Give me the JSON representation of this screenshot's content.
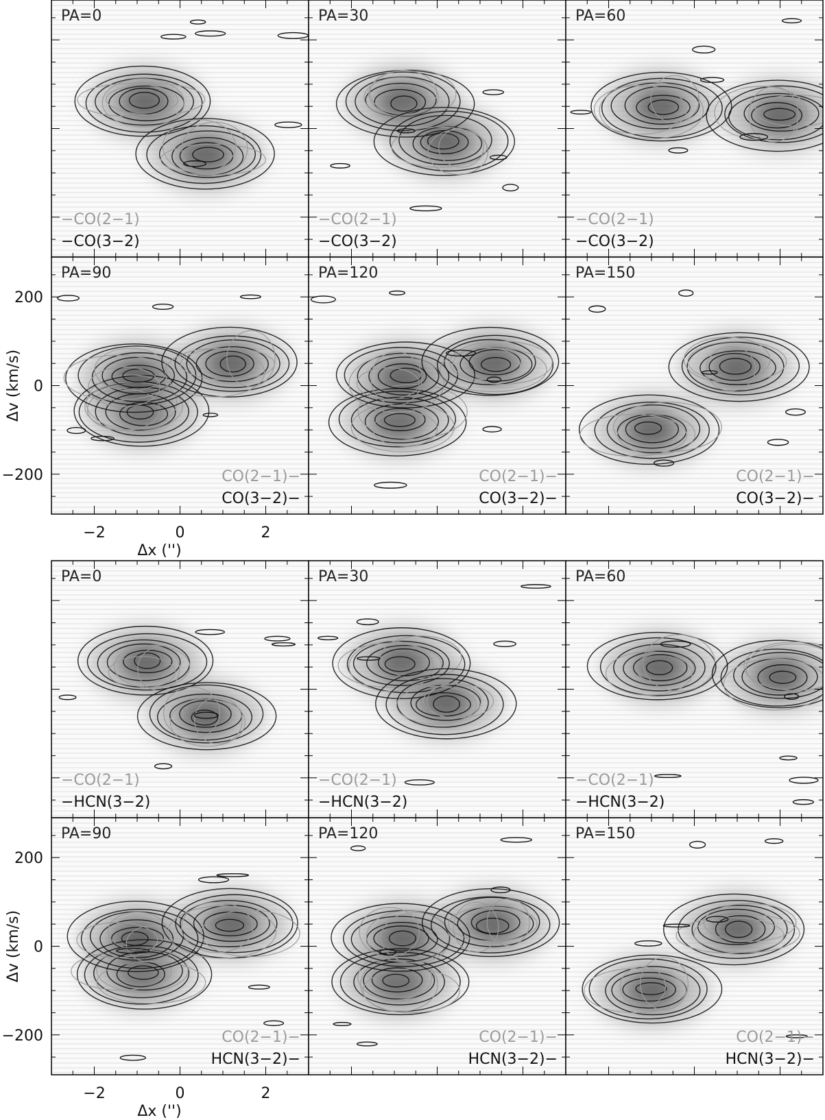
{
  "figure": {
    "blocks": [
      {
        "id": "co32",
        "contour_line": "CO(3-2)",
        "panels": [
          {
            "pa": "PA=0",
            "legend_grey": "−CO(2−1)",
            "legend_black": "−CO(3−2)",
            "legend_side": "left"
          },
          {
            "pa": "PA=30",
            "legend_grey": "−CO(2−1)",
            "legend_black": "−CO(3−2)",
            "legend_side": "left"
          },
          {
            "pa": "PA=60",
            "legend_grey": "−CO(2−1)",
            "legend_black": "−CO(3−2)",
            "legend_side": "left"
          },
          {
            "pa": "PA=90",
            "legend_grey": "CO(2−1)−",
            "legend_black": "CO(3−2)−",
            "legend_side": "right"
          },
          {
            "pa": "PA=120",
            "legend_grey": "CO(2−1)−",
            "legend_black": "CO(3−2)−",
            "legend_side": "right"
          },
          {
            "pa": "PA=150",
            "legend_grey": "CO(2−1)−",
            "legend_black": "CO(3−2)−",
            "legend_side": "right"
          }
        ]
      },
      {
        "id": "hcn32",
        "contour_line": "HCN(3-2)",
        "panels": [
          {
            "pa": "PA=0",
            "legend_grey": "−CO(2−1)",
            "legend_black": "−HCN(3−2)",
            "legend_side": "left"
          },
          {
            "pa": "PA=30",
            "legend_grey": "−CO(2−1)",
            "legend_black": "−HCN(3−2)",
            "legend_side": "left"
          },
          {
            "pa": "PA=60",
            "legend_grey": "−CO(2−1)",
            "legend_black": "−HCN(3−2)",
            "legend_side": "left"
          },
          {
            "pa": "PA=90",
            "legend_grey": "CO(2−1)−",
            "legend_black": "HCN(3−2)−",
            "legend_side": "right"
          },
          {
            "pa": "PA=120",
            "legend_grey": "CO(2−1)−",
            "legend_black": "HCN(3−2)−",
            "legend_side": "right"
          },
          {
            "pa": "PA=150",
            "legend_grey": "CO(2−1)−",
            "legend_black": "HCN(3−2)−",
            "legend_side": "right"
          }
        ]
      }
    ],
    "ylabel": "Δv (km/s)",
    "xlabel": "Δx ('')",
    "colors": {
      "grey_legend": "#9a9a9a",
      "contour": "#111111",
      "frame": "#000000"
    }
  },
  "chart_data": {
    "type": "heatmap",
    "description_kind": "position-velocity diagrams with overlaid contours",
    "x": {
      "label": "Δx ('')",
      "ticks": [
        -2,
        0,
        2
      ],
      "tick_labels": [
        "−2",
        "0",
        "2"
      ],
      "range": [
        -3,
        3
      ]
    },
    "y": {
      "label": "Δv (km/s)",
      "ticks": [
        -200,
        0,
        200
      ],
      "tick_labels": [
        "−200",
        "0",
        "200"
      ],
      "range": [
        -290,
        290
      ]
    },
    "series": [
      {
        "name": "CO(2−1)",
        "style": "greyscale + grey contours"
      },
      {
        "name": "CO(3−2)",
        "style": "black contours"
      },
      {
        "name": "HCN(3−2)",
        "style": "black contours"
      }
    ],
    "panels": [
      "PA=0",
      "PA=30",
      "PA=60",
      "PA=90",
      "PA=120",
      "PA=150"
    ],
    "emission_centroids": {
      "PA=0": [
        {
          "x": -0.8,
          "v": 60
        },
        {
          "x": 0.6,
          "v": -60
        }
      ],
      "PA=30": [
        {
          "x": -0.8,
          "v": 60
        },
        {
          "x": 0.2,
          "v": -30
        }
      ],
      "PA=60": [
        {
          "x": -0.8,
          "v": 50
        },
        {
          "x": 2.0,
          "v": 30
        }
      ],
      "PA=90": [
        {
          "x": -0.9,
          "v": -60
        },
        {
          "x": -1.0,
          "v": 20
        },
        {
          "x": 1.2,
          "v": 50
        }
      ],
      "PA=120": [
        {
          "x": -0.9,
          "v": -80
        },
        {
          "x": -0.8,
          "v": 20
        },
        {
          "x": 1.3,
          "v": 50
        }
      ],
      "PA=150": [
        {
          "x": -1.0,
          "v": -100
        },
        {
          "x": 1.0,
          "v": 40
        }
      ]
    }
  }
}
